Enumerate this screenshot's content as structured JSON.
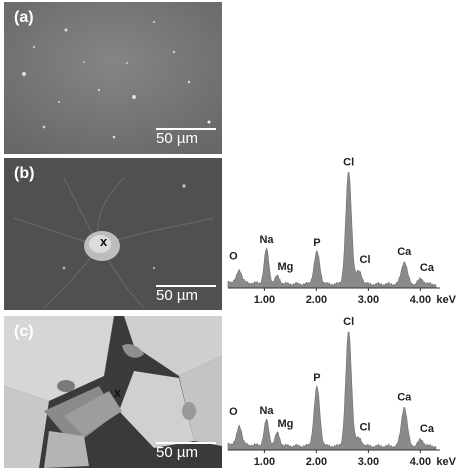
{
  "panels": [
    {
      "label": "(a)",
      "scale_bar": "50 µm"
    },
    {
      "label": "(b)",
      "scale_bar": "50 µm",
      "marker": "x"
    },
    {
      "label": "(c)",
      "scale_bar": "50 µm",
      "marker": "x"
    }
  ],
  "chart_data": [
    {
      "type": "area",
      "panel": "(b)",
      "xlabel": "keV",
      "x_ticks": [
        "1.00",
        "2.00",
        "3.00",
        "4.00"
      ],
      "xlim": [
        0.3,
        4.3
      ],
      "ylim": [
        0,
        100
      ],
      "peaks": [
        {
          "element": "O",
          "energy": 0.52,
          "height": 10
        },
        {
          "element": "Na",
          "energy": 1.04,
          "height": 27
        },
        {
          "element": "Mg",
          "energy": 1.25,
          "height": 6
        },
        {
          "element": "P",
          "energy": 2.01,
          "height": 25
        },
        {
          "element": "Cl",
          "energy": 2.62,
          "height": 88
        },
        {
          "element": "Cl",
          "energy": 2.82,
          "height": 10
        },
        {
          "element": "Ca",
          "energy": 3.69,
          "height": 18
        },
        {
          "element": "Ca",
          "energy": 4.01,
          "height": 4
        }
      ]
    },
    {
      "type": "area",
      "panel": "(c)",
      "xlabel": "keV",
      "x_ticks": [
        "1.00",
        "2.00",
        "3.00",
        "4.00"
      ],
      "xlim": [
        0.3,
        4.3
      ],
      "ylim": [
        0,
        100
      ],
      "peaks": [
        {
          "element": "O",
          "energy": 0.52,
          "height": 15
        },
        {
          "element": "Na",
          "energy": 1.04,
          "height": 20
        },
        {
          "element": "Mg",
          "energy": 1.25,
          "height": 10
        },
        {
          "element": "P",
          "energy": 2.01,
          "height": 46
        },
        {
          "element": "Cl",
          "energy": 2.62,
          "height": 90
        },
        {
          "element": "Cl",
          "energy": 2.82,
          "height": 6
        },
        {
          "element": "Ca",
          "energy": 3.69,
          "height": 31
        },
        {
          "element": "Ca",
          "energy": 4.01,
          "height": 5
        }
      ]
    }
  ]
}
